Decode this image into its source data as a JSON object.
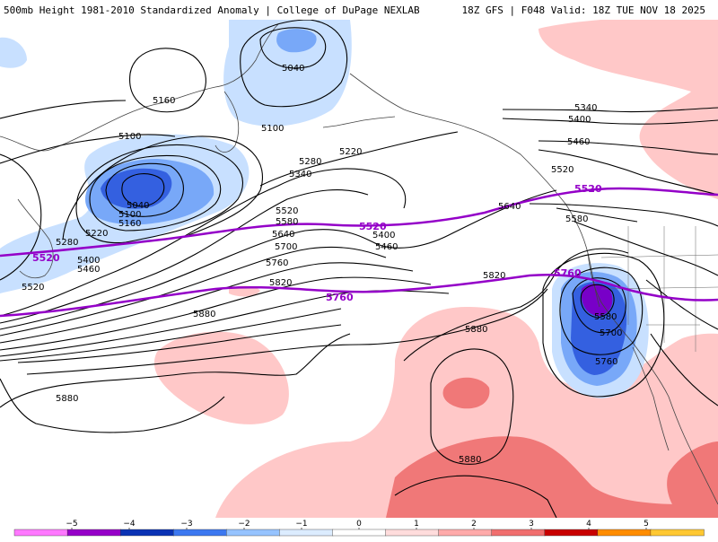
{
  "header": {
    "left": "500mb Height 1981-2010 Standardized Anomaly | College of DuPage NEXLAB",
    "right": "18Z GFS | F048 Valid: 18Z TUE NOV 18 2025"
  },
  "colors": {
    "anom_neg_1": "#c8e0ff",
    "anom_neg_2": "#78a8f8",
    "anom_neg_3": "#3460e0",
    "anom_neg_4": "#7800c8",
    "anom_pos_1": "#ffc8c8",
    "anom_pos_2": "#f07878",
    "contour": "#000000",
    "highlight_contour": "#9400c8",
    "coastline": "#444444"
  },
  "height_labels": [
    {
      "name": "label-5040-north",
      "text": "5040"
    },
    {
      "name": "label-5100-north",
      "text": "5100"
    },
    {
      "name": "label-5160-west",
      "text": "5160"
    },
    {
      "name": "label-5100-west",
      "text": "5100"
    },
    {
      "name": "label-5040-low",
      "text": "5040"
    },
    {
      "name": "label-5100-low",
      "text": "5100"
    },
    {
      "name": "label-5160-low",
      "text": "5160"
    },
    {
      "name": "label-5220-low",
      "text": "5220"
    },
    {
      "name": "label-5280-west",
      "text": "5280"
    },
    {
      "name": "label-5400-west",
      "text": "5400"
    },
    {
      "name": "label-5460-west",
      "text": "5460"
    },
    {
      "name": "label-5520-west",
      "text": "5520"
    },
    {
      "name": "label-5220-mid",
      "text": "5220"
    },
    {
      "name": "label-5280-mid",
      "text": "5280"
    },
    {
      "name": "label-5340-mid",
      "text": "5340"
    },
    {
      "name": "label-5520-mid",
      "text": "5520"
    },
    {
      "name": "label-5580-mid",
      "text": "5580"
    },
    {
      "name": "label-5640-mid",
      "text": "5640"
    },
    {
      "name": "label-5700-mid",
      "text": "5700"
    },
    {
      "name": "label-5760-mid",
      "text": "5760"
    },
    {
      "name": "label-5820-mid",
      "text": "5820"
    },
    {
      "name": "label-5400-trough",
      "text": "5400"
    },
    {
      "name": "label-5460-trough",
      "text": "5460"
    },
    {
      "name": "label-5880-west",
      "text": "5880"
    },
    {
      "name": "label-5880-sw",
      "text": "5880"
    },
    {
      "name": "label-5880-center",
      "text": "5880"
    },
    {
      "name": "label-5820-east",
      "text": "5820"
    },
    {
      "name": "label-5880-south",
      "text": "5880"
    },
    {
      "name": "label-5340-ne",
      "text": "5340"
    },
    {
      "name": "label-5400-ne",
      "text": "5400"
    },
    {
      "name": "label-5460-ne",
      "text": "5460"
    },
    {
      "name": "label-5520-ne",
      "text": "5520"
    },
    {
      "name": "label-5640-east",
      "text": "5640"
    },
    {
      "name": "label-5580-east",
      "text": "5580"
    },
    {
      "name": "label-5580-cutoff",
      "text": "5580"
    },
    {
      "name": "label-5700-cutoff",
      "text": "5700"
    },
    {
      "name": "label-5760-cutoff",
      "text": "5760"
    }
  ],
  "purple_labels": [
    {
      "name": "purple-label-5520-west",
      "text": "5520"
    },
    {
      "name": "purple-label-5520-mid",
      "text": "5520"
    },
    {
      "name": "purple-label-5520-east",
      "text": "5520"
    },
    {
      "name": "purple-label-5760-mid",
      "text": "5760"
    },
    {
      "name": "purple-label-5760-east",
      "text": "5760"
    }
  ],
  "colorbar": {
    "ticks": [
      "−5",
      "−4",
      "−3",
      "−2",
      "−1",
      "0",
      "1",
      "2",
      "3",
      "4",
      "5"
    ],
    "colors": [
      "#ff78ff",
      "#9600c8",
      "#0a32b4",
      "#3c78f0",
      "#96c3ff",
      "#dcecff",
      "#ffffff",
      "#ffdcdc",
      "#ffaaaa",
      "#f06e6e",
      "#c80000",
      "#ff8c00",
      "#ffc832"
    ]
  }
}
